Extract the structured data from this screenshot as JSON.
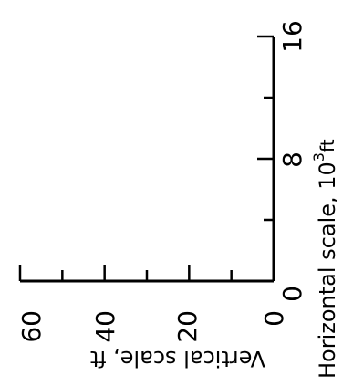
{
  "scale_bar": {
    "vertical": {
      "ticks": [
        "60",
        "40",
        "20",
        "0"
      ],
      "title": "Vertical scale, ft",
      "values": [
        60,
        40,
        20,
        0
      ],
      "range": [
        0,
        60
      ],
      "minor_step": 10
    },
    "horizontal": {
      "ticks": [
        "0",
        "8",
        "16"
      ],
      "title": "Horizontal scale, 10",
      "title_sup": "3",
      "title_unit": "ft",
      "values": [
        0,
        8,
        16
      ],
      "range": [
        0,
        16
      ],
      "minor_step": 4
    }
  }
}
